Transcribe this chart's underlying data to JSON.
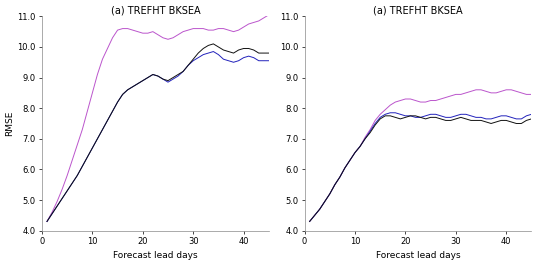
{
  "title": "(a) TREFHT BKSEA",
  "xlabel": "Forecast lead days",
  "ylabel": "RMSE",
  "ylim": [
    4.0,
    11.0
  ],
  "xlim": [
    0,
    45
  ],
  "yticks": [
    4.0,
    5.0,
    6.0,
    7.0,
    8.0,
    9.0,
    10.0,
    11.0
  ],
  "xticks": [
    0,
    10,
    20,
    30,
    40
  ],
  "colors": {
    "black": "#111111",
    "purple": "#bb55cc",
    "blue": "#2222bb"
  },
  "left": {
    "black": [
      4.3,
      4.55,
      4.8,
      5.05,
      5.3,
      5.55,
      5.8,
      6.1,
      6.4,
      6.7,
      7.0,
      7.3,
      7.6,
      7.9,
      8.2,
      8.45,
      8.6,
      8.7,
      8.8,
      8.9,
      9.0,
      9.1,
      9.05,
      8.95,
      8.9,
      9.0,
      9.1,
      9.2,
      9.4,
      9.6,
      9.8,
      9.95,
      10.05,
      10.1,
      10.0,
      9.9,
      9.85,
      9.8,
      9.9,
      9.95,
      9.95,
      9.9,
      9.8,
      9.8,
      9.8
    ],
    "purple": [
      4.3,
      4.6,
      4.95,
      5.35,
      5.8,
      6.3,
      6.8,
      7.3,
      7.9,
      8.5,
      9.1,
      9.6,
      9.95,
      10.3,
      10.55,
      10.6,
      10.6,
      10.55,
      10.5,
      10.45,
      10.45,
      10.5,
      10.4,
      10.3,
      10.25,
      10.3,
      10.4,
      10.5,
      10.55,
      10.6,
      10.6,
      10.6,
      10.55,
      10.55,
      10.6,
      10.6,
      10.55,
      10.5,
      10.55,
      10.65,
      10.75,
      10.8,
      10.85,
      10.95,
      11.05
    ],
    "blue": [
      4.3,
      4.55,
      4.8,
      5.05,
      5.3,
      5.55,
      5.8,
      6.1,
      6.4,
      6.7,
      7.0,
      7.3,
      7.6,
      7.9,
      8.2,
      8.45,
      8.6,
      8.7,
      8.8,
      8.9,
      9.0,
      9.1,
      9.05,
      8.95,
      8.85,
      8.95,
      9.05,
      9.2,
      9.4,
      9.55,
      9.65,
      9.75,
      9.8,
      9.85,
      9.75,
      9.6,
      9.55,
      9.5,
      9.55,
      9.65,
      9.7,
      9.65,
      9.55,
      9.55,
      9.55
    ]
  },
  "right": {
    "black": [
      4.3,
      4.5,
      4.7,
      4.95,
      5.2,
      5.5,
      5.75,
      6.05,
      6.3,
      6.55,
      6.75,
      7.0,
      7.2,
      7.45,
      7.65,
      7.75,
      7.75,
      7.7,
      7.65,
      7.7,
      7.75,
      7.75,
      7.7,
      7.65,
      7.7,
      7.7,
      7.65,
      7.6,
      7.6,
      7.65,
      7.7,
      7.65,
      7.6,
      7.6,
      7.6,
      7.55,
      7.5,
      7.55,
      7.6,
      7.6,
      7.55,
      7.5,
      7.5,
      7.6,
      7.65
    ],
    "purple": [
      4.3,
      4.5,
      4.7,
      4.95,
      5.2,
      5.5,
      5.75,
      6.05,
      6.3,
      6.55,
      6.75,
      7.05,
      7.3,
      7.6,
      7.8,
      7.95,
      8.1,
      8.2,
      8.25,
      8.3,
      8.3,
      8.25,
      8.2,
      8.2,
      8.25,
      8.25,
      8.3,
      8.35,
      8.4,
      8.45,
      8.45,
      8.5,
      8.55,
      8.6,
      8.6,
      8.55,
      8.5,
      8.5,
      8.55,
      8.6,
      8.6,
      8.55,
      8.5,
      8.45,
      8.45
    ],
    "blue": [
      4.3,
      4.5,
      4.7,
      4.95,
      5.2,
      5.5,
      5.75,
      6.05,
      6.3,
      6.55,
      6.75,
      7.0,
      7.25,
      7.5,
      7.7,
      7.8,
      7.85,
      7.85,
      7.8,
      7.75,
      7.75,
      7.7,
      7.7,
      7.75,
      7.8,
      7.8,
      7.75,
      7.7,
      7.7,
      7.75,
      7.8,
      7.8,
      7.75,
      7.7,
      7.7,
      7.65,
      7.65,
      7.7,
      7.75,
      7.75,
      7.7,
      7.65,
      7.65,
      7.75,
      7.8
    ]
  },
  "figsize": [
    5.37,
    2.66
  ],
  "dpi": 100
}
